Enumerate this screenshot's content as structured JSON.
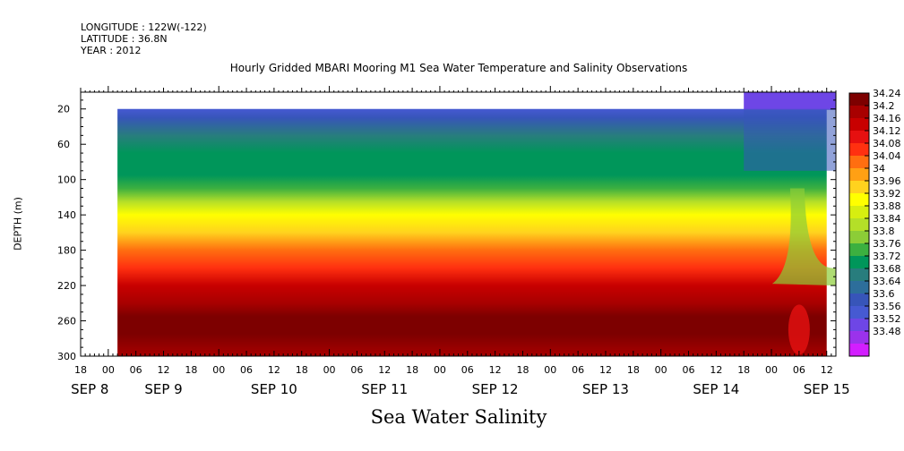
{
  "header": {
    "longitude": "LONGITUDE : 122W(-122)",
    "latitude": "LATITUDE : 36.8N",
    "year": "YEAR : 2012"
  },
  "footer_label": "Sea Water Salinity",
  "chart_data": {
    "type": "heatmap",
    "title": "Hourly Gridded MBARI Mooring M1 Sea Water Temperature and Salinity Observations",
    "ylabel": "DEPTH (m)",
    "xlabel": "",
    "y_axis": {
      "ticks": [
        20,
        60,
        100,
        140,
        180,
        220,
        260,
        300
      ],
      "range": [
        1,
        300
      ],
      "inverted": true
    },
    "x_axis": {
      "range_hours": [
        -6,
        158
      ],
      "hour_ticks": [
        -6,
        0,
        6,
        12,
        18,
        24,
        30,
        36,
        42,
        48,
        54,
        60,
        66,
        72,
        78,
        84,
        90,
        96,
        102,
        108,
        114,
        120,
        126,
        132,
        138,
        144,
        150,
        156
      ],
      "hour_labels": [
        "18",
        "00",
        "06",
        "12",
        "18",
        "00",
        "06",
        "12",
        "18",
        "00",
        "06",
        "12",
        "18",
        "00",
        "06",
        "12",
        "18",
        "00",
        "06",
        "12",
        "18",
        "00",
        "06",
        "12",
        "18",
        "00",
        "06",
        "12"
      ],
      "days": [
        {
          "label": "SEP 8",
          "hour": -4
        },
        {
          "label": "SEP 9",
          "hour": 12
        },
        {
          "label": "SEP 10",
          "hour": 36
        },
        {
          "label": "SEP 11",
          "hour": 60
        },
        {
          "label": "SEP 12",
          "hour": 84
        },
        {
          "label": "SEP 13",
          "hour": 108
        },
        {
          "label": "SEP 14",
          "hour": 132
        },
        {
          "label": "SEP 15",
          "hour": 156
        }
      ]
    },
    "data_extent": {
      "start_hour": 2,
      "end_hour": 156,
      "top_depth": 20,
      "bottom_depth": 300
    },
    "salinity_profile": [
      {
        "depth": 20,
        "value": 33.59
      },
      {
        "depth": 30,
        "value": 33.62
      },
      {
        "depth": 50,
        "value": 33.67
      },
      {
        "depth": 70,
        "value": 33.71
      },
      {
        "depth": 95,
        "value": 33.74
      },
      {
        "depth": 110,
        "value": 33.77
      },
      {
        "depth": 125,
        "value": 33.84
      },
      {
        "depth": 140,
        "value": 33.91
      },
      {
        "depth": 160,
        "value": 33.97
      },
      {
        "depth": 180,
        "value": 34.02
      },
      {
        "depth": 200,
        "value": 34.08
      },
      {
        "depth": 220,
        "value": 34.14
      },
      {
        "depth": 240,
        "value": 34.19
      },
      {
        "depth": 255,
        "value": 34.24
      },
      {
        "depth": 275,
        "value": 34.21
      },
      {
        "depth": 300,
        "value": 34.19
      }
    ],
    "colorbar": {
      "min": 33.48,
      "max": 34.24,
      "labels": [
        "34.24",
        "34.2",
        "34.16",
        "34.12",
        "34.08",
        "34.04",
        "34",
        "33.96",
        "33.92",
        "33.88",
        "33.84",
        "33.8",
        "33.76",
        "33.72",
        "33.68",
        "33.64",
        "33.6",
        "33.56",
        "33.52",
        "33.48"
      ],
      "colors_top_to_bottom": [
        "#7d0000",
        "#a80000",
        "#c80000",
        "#e61010",
        "#ff3010",
        "#ff6e10",
        "#ffa014",
        "#ffd21e",
        "#ffff00",
        "#d7ee10",
        "#b4df28",
        "#8ccd37",
        "#3cb040",
        "#00965a",
        "#287d7d",
        "#2d6e9b",
        "#3755b9",
        "#465ad2",
        "#6e46e6",
        "#9b32eb",
        "#d21eff"
      ]
    }
  }
}
